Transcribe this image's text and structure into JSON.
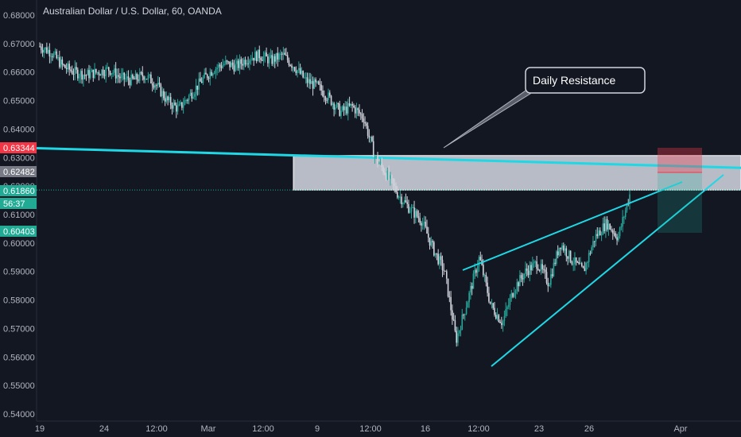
{
  "chart_data": {
    "type": "candlestick",
    "title": "Australian Dollar / U.S. Dollar, 60, OANDA",
    "ylim": [
      0.54,
      0.685
    ],
    "y_ticks": [
      "0.54000",
      "0.55000",
      "0.56000",
      "0.57000",
      "0.58000",
      "0.59000",
      "0.60000",
      "0.61000",
      "0.62000",
      "0.63000",
      "0.64000",
      "0.65000",
      "0.66000",
      "0.67000",
      "0.68000"
    ],
    "x_ticks": [
      "19",
      "24",
      "12:00",
      "Mar",
      "12:00",
      "9",
      "12:00",
      "16",
      "12:00",
      "23",
      "26",
      "Apr"
    ],
    "grid": false,
    "price_path": [
      0.669,
      0.667,
      0.662,
      0.66,
      0.659,
      0.66,
      0.661,
      0.658,
      0.657,
      0.659,
      0.656,
      0.65,
      0.647,
      0.652,
      0.657,
      0.661,
      0.663,
      0.662,
      0.665,
      0.666,
      0.664,
      0.666,
      0.662,
      0.657,
      0.655,
      0.651,
      0.646,
      0.648,
      0.644,
      0.63,
      0.624,
      0.617,
      0.612,
      0.608,
      0.598,
      0.59,
      0.566,
      0.58,
      0.595,
      0.578,
      0.572,
      0.584,
      0.59,
      0.593,
      0.586,
      0.6,
      0.594,
      0.59,
      0.602,
      0.607,
      0.602,
      0.617
    ],
    "resistance_zone": {
      "top": 0.6307,
      "bottom": 0.6186
    },
    "trend_line": {
      "label": "",
      "from": 0.6333,
      "to": 0.6264
    },
    "annotation": "Daily Resistance",
    "price_badges": [
      {
        "text": "0.63344",
        "color": "#f23645"
      },
      {
        "text": "0.62482",
        "color": "#787b86"
      },
      {
        "text": "0.61860",
        "color": "#22ab94"
      },
      {
        "text": "56:37",
        "color": "#22ab94"
      },
      {
        "text": "0.60403",
        "color": "#22ab94"
      }
    ],
    "colors": {
      "up": "#26a69a",
      "down": "#d1d4dc",
      "trend": "#1ed8e5",
      "background": "#131722"
    }
  }
}
